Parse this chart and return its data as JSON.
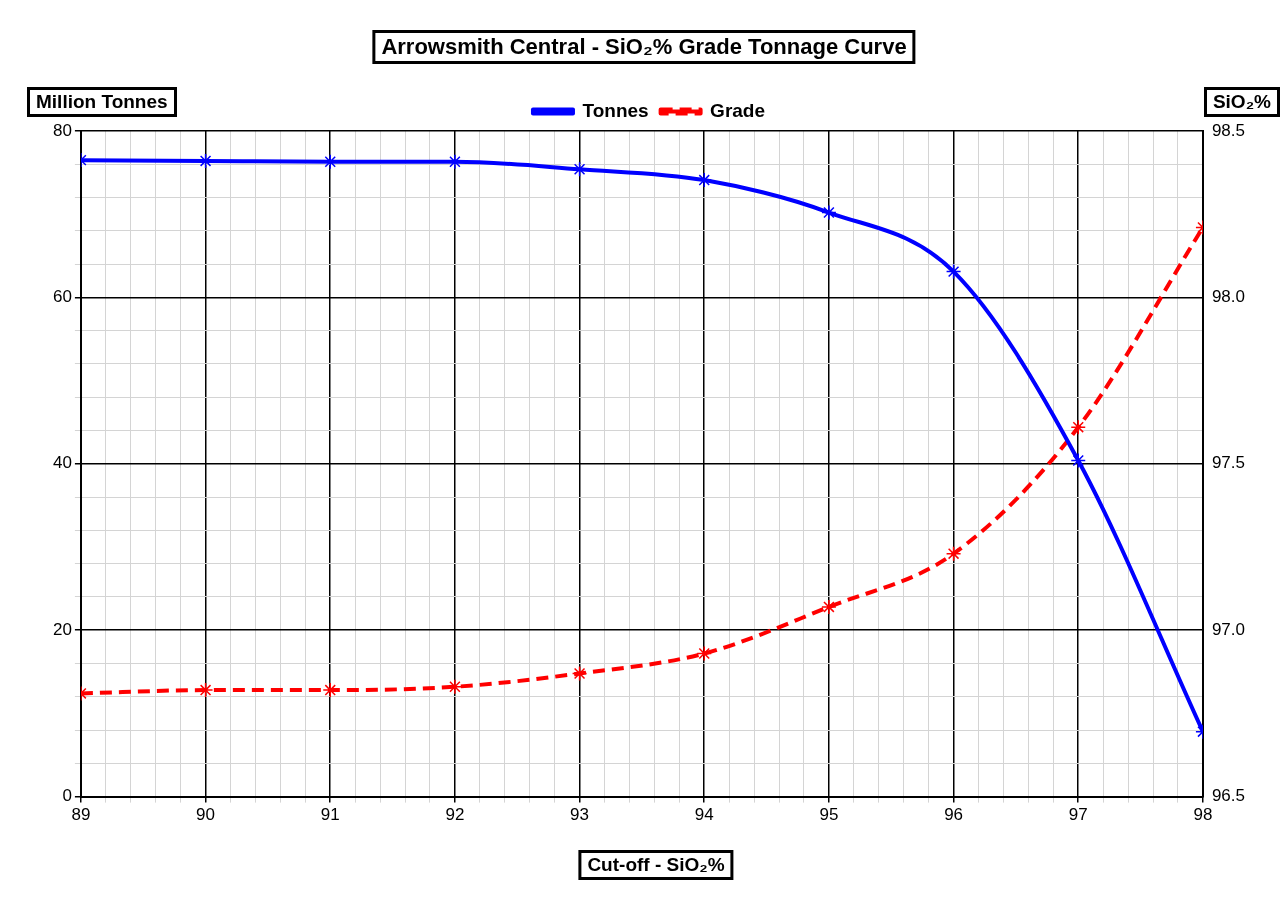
{
  "chart_data": {
    "type": "line",
    "title": "Arrowsmith Central - SiO₂% Grade Tonnage Curve",
    "xlabel": "Cut-off  - SiO₂%",
    "ylabel": "Million Tonnes",
    "y2label": "SiO₂%",
    "x": [
      89,
      90,
      91,
      92,
      93,
      94,
      95,
      96,
      97,
      98
    ],
    "series": [
      {
        "name": "Tonnes",
        "color": "#0000ff",
        "values": [
          76.5,
          76.4,
          76.3,
          76.3,
          75.4,
          74.1,
          70.2,
          63.1,
          40.4,
          7.8
        ]
      },
      {
        "name": "Grade",
        "color": "#ff0000",
        "axis": "y2",
        "line_style": "dashed",
        "values": [
          96.81,
          96.82,
          96.82,
          96.83,
          96.87,
          96.93,
          97.07,
          97.23,
          97.61,
          98.21
        ]
      }
    ],
    "xlim": [
      89,
      98
    ],
    "xticks": [
      89,
      {
        "value": 89.2,
        "label": null
      },
      {
        "value": 89.4,
        "label": null
      },
      {
        "value": 89.6,
        "label": null
      },
      {
        "value": 89.8,
        "label": null
      },
      90,
      {
        "value": 90.2,
        "label": null
      },
      {
        "value": 90.4,
        "label": null
      },
      {
        "value": 90.6,
        "label": null
      },
      {
        "value": 90.8,
        "label": null
      },
      91,
      {
        "value": 91.2,
        "label": null
      },
      {
        "value": 91.4,
        "label": null
      },
      {
        "value": 91.6,
        "label": null
      },
      {
        "value": 91.8,
        "label": null
      },
      92,
      {
        "value": 92.2,
        "label": null
      },
      {
        "value": 92.4,
        "label": null
      },
      {
        "value": 92.6,
        "label": null
      },
      {
        "value": 92.8,
        "label": null
      },
      93,
      {
        "value": 93.2,
        "label": null
      },
      {
        "value": 93.4,
        "label": null
      },
      {
        "value": 93.6,
        "label": null
      },
      {
        "value": 93.8,
        "label": null
      },
      94,
      {
        "value": 94.2,
        "label": null
      },
      {
        "value": 94.4,
        "label": null
      },
      {
        "value": 94.6,
        "label": null
      },
      {
        "value": 94.8,
        "label": null
      },
      95,
      {
        "value": 95.2,
        "label": null
      },
      {
        "value": 95.4,
        "label": null
      },
      {
        "value": 95.6,
        "label": null
      },
      {
        "value": 95.8,
        "label": null
      },
      96,
      {
        "value": 96.2,
        "label": null
      },
      {
        "value": 96.4,
        "label": null
      },
      {
        "value": 96.6,
        "label": null
      },
      {
        "value": 96.8,
        "label": null
      },
      97,
      {
        "value": 97.2,
        "label": null
      },
      {
        "value": 97.4,
        "label": null
      },
      {
        "value": 97.6,
        "label": null
      },
      {
        "value": 97.8,
        "label": null
      },
      98
    ],
    "ylim": [
      0,
      80
    ],
    "yticks": [
      0,
      {
        "value": 4,
        "label": null
      },
      {
        "value": 8,
        "label": null
      },
      {
        "value": 12,
        "label": null
      },
      {
        "value": 16,
        "label": null
      },
      20,
      {
        "value": 24,
        "label": null
      },
      {
        "value": 28,
        "label": null
      },
      {
        "value": 32,
        "label": null
      },
      {
        "value": 36,
        "label": null
      },
      40,
      {
        "value": 44,
        "label": null
      },
      {
        "value": 48,
        "label": null
      },
      {
        "value": 52,
        "label": null
      },
      {
        "value": 56,
        "label": null
      },
      60,
      {
        "value": 64,
        "label": null
      },
      {
        "value": 68,
        "label": null
      },
      {
        "value": 72,
        "label": null
      },
      {
        "value": 76,
        "label": null
      },
      80
    ],
    "y2lim": [
      96.5,
      98.5
    ],
    "y2ticks": [
      96.5,
      {
        "value": 97,
        "label": "97.0"
      },
      97.5,
      {
        "value": 98,
        "label": "98.0"
      },
      98.5
    ],
    "grid": true,
    "legend": "top",
    "marker": "cross",
    "line_style": "solid"
  }
}
